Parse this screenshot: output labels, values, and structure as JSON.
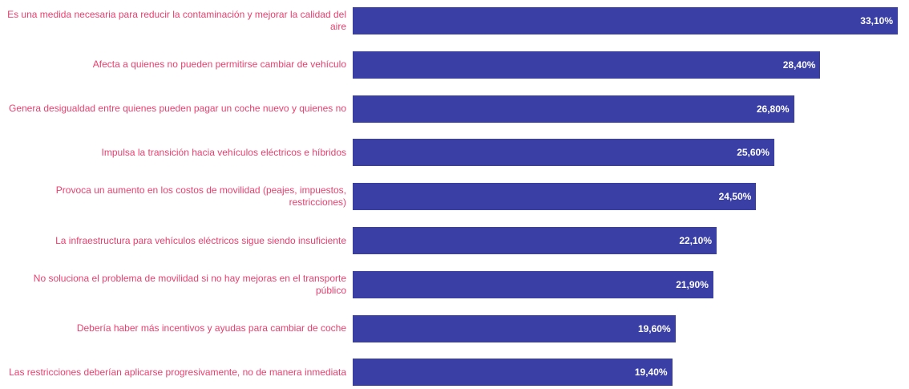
{
  "chart_data": {
    "type": "bar",
    "orientation": "horizontal",
    "color": "#3a3fa6",
    "label_color": "#e8416f",
    "categories": [
      "Es una medida necesaria para reducir la contaminación y mejorar la calidad del aire",
      "Afecta a quienes no pueden permitirse cambiar de vehículo",
      "Genera desigualdad entre quienes pueden pagar un coche nuevo y quienes no",
      "Impulsa la transición hacia vehículos eléctricos e híbridos",
      "Provoca un aumento en los costos de movilidad (peajes, impuestos, restricciones)",
      "La infraestructura para vehículos eléctricos sigue siendo insuficiente",
      "No soluciona el problema de movilidad si no hay mejoras en el transporte público",
      "Debería haber más incentivos y ayudas para cambiar de coche",
      "Las restricciones deberían aplicarse progresivamente, no de manera inmediata"
    ],
    "values": [
      33.1,
      28.4,
      26.8,
      25.6,
      24.5,
      22.1,
      21.9,
      19.6,
      19.4
    ],
    "value_labels": [
      "33,10%",
      "28,40%",
      "26,80%",
      "25,60%",
      "24,50%",
      "22,10%",
      "21,90%",
      "19,60%",
      "19,40%"
    ]
  }
}
